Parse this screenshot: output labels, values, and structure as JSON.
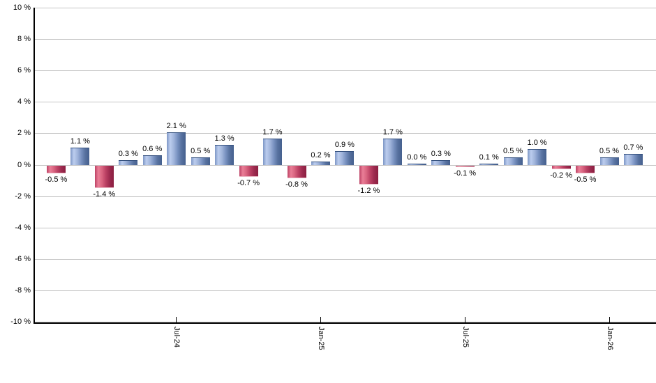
{
  "chart_data": {
    "type": "bar",
    "title": "",
    "xlabel": "",
    "ylabel": "",
    "ylim": [
      -10,
      10
    ],
    "y_tick_step": 2,
    "grid": true,
    "legend": "none",
    "y_tick_labels": [
      "10 %",
      "8 %",
      "6 %",
      "4 %",
      "2 %",
      "0 %",
      "-2 %",
      "-4 %",
      "-6 %",
      "-8 %",
      "-10 %"
    ],
    "values": [
      -0.5,
      1.1,
      -1.4,
      0.3,
      0.6,
      2.1,
      0.5,
      1.3,
      -0.7,
      1.7,
      -0.8,
      0.2,
      0.9,
      -1.2,
      1.7,
      0.0,
      0.3,
      -0.1,
      0.1,
      0.5,
      1.0,
      -0.2,
      -0.5,
      0.5,
      0.7
    ],
    "bar_labels": [
      "-0.5 %",
      "1.1 %",
      "-1.4 %",
      "0.3 %",
      "0.6 %",
      "2.1 %",
      "0.5 %",
      "1.3 %",
      "-0.7 %",
      "1.7 %",
      "-0.8 %",
      "0.2 %",
      "0.9 %",
      "-1.2 %",
      "1.7 %",
      "0.0 %",
      "0.3 %",
      "-0.1 %",
      "0.1 %",
      "0.5 %",
      "1.0 %",
      "-0.2 %",
      "-0.5 %",
      "0.5 %",
      "0.7 %"
    ],
    "x_ticks": [
      {
        "label": "Jul-24",
        "bar_index": 5
      },
      {
        "label": "Jan-25",
        "bar_index": 11
      },
      {
        "label": "Jul-25",
        "bar_index": 17
      },
      {
        "label": "Jan-26",
        "bar_index": 23
      }
    ],
    "colors": {
      "positive_bar_light": "#bccdee",
      "positive_bar_dark": "#45608e",
      "negative_bar_light": "#ea7e97",
      "negative_bar_dark": "#8b1e40",
      "gridline": "#c4c4c4",
      "axis": "#000000",
      "text": "#000000",
      "background": "#ffffff"
    }
  }
}
